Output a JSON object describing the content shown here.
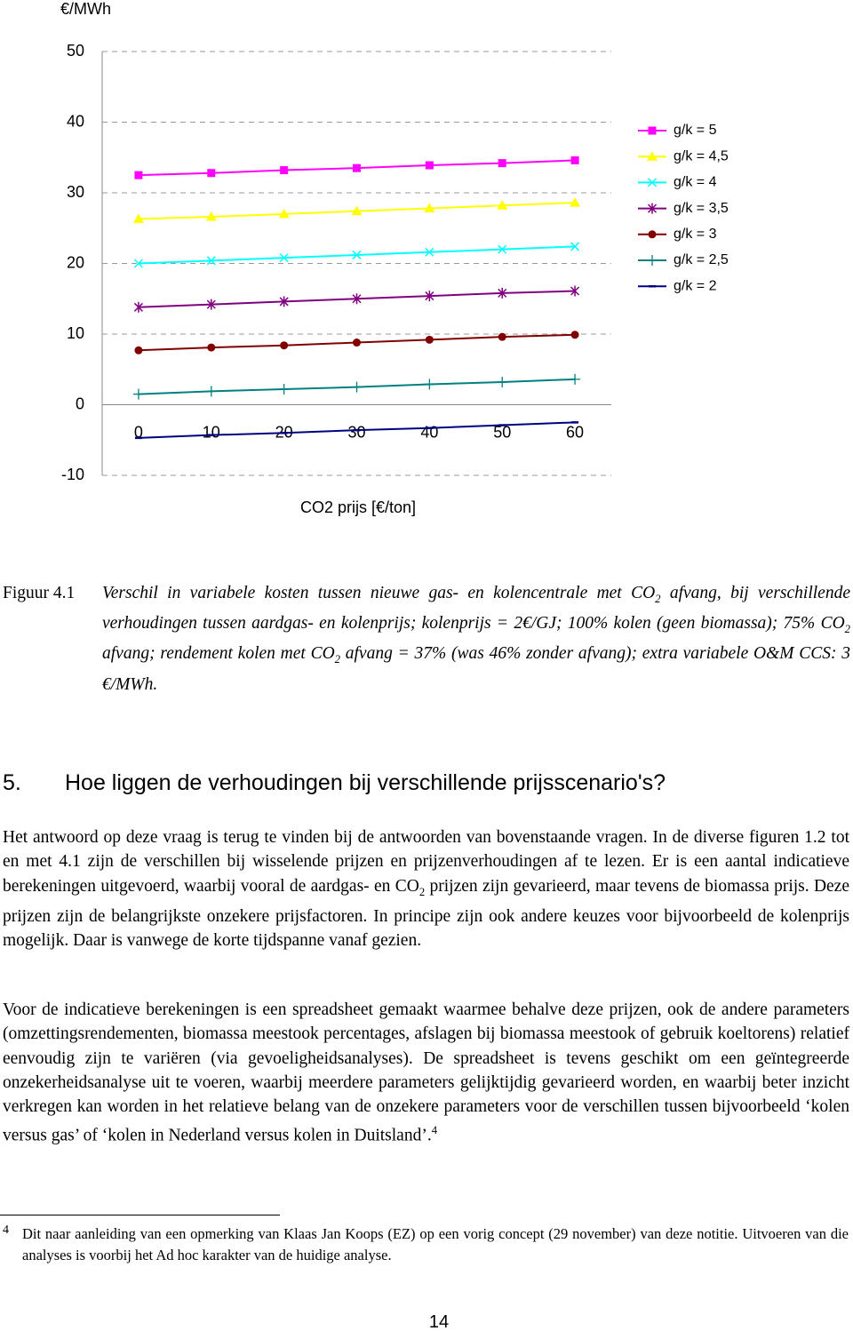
{
  "chart_data": {
    "type": "line",
    "y_label": "€/MWh",
    "x_label": "CO2 prijs [€/ton]",
    "categories": [
      "0",
      "10",
      "20",
      "30",
      "40",
      "50",
      "60"
    ],
    "ylim": [
      -10,
      50
    ],
    "yticks": [
      -10,
      0,
      10,
      20,
      30,
      40,
      50
    ],
    "grid": true,
    "legend": "right",
    "series": [
      {
        "name": "g/k = 5",
        "color": "#ff00ff",
        "marker": "square",
        "values": [
          32.5,
          32.8,
          33.2,
          33.5,
          33.9,
          34.2,
          34.6
        ]
      },
      {
        "name": "g/k = 4,5",
        "color": "#ffff00",
        "marker": "triangle",
        "values": [
          26.3,
          26.6,
          27.0,
          27.4,
          27.8,
          28.2,
          28.6
        ]
      },
      {
        "name": "g/k = 4",
        "color": "#00ffff",
        "marker": "x",
        "values": [
          20.0,
          20.4,
          20.8,
          21.2,
          21.6,
          22.0,
          22.4
        ]
      },
      {
        "name": "g/k = 3,5",
        "color": "#800080",
        "marker": "star",
        "values": [
          13.8,
          14.2,
          14.6,
          15.0,
          15.4,
          15.8,
          16.1
        ]
      },
      {
        "name": "g/k = 3",
        "color": "#800000",
        "marker": "circle",
        "values": [
          7.7,
          8.1,
          8.4,
          8.8,
          9.2,
          9.6,
          9.9
        ]
      },
      {
        "name": "g/k = 2,5",
        "color": "#008080",
        "marker": "plus",
        "values": [
          1.5,
          1.9,
          2.2,
          2.5,
          2.9,
          3.2,
          3.6
        ]
      },
      {
        "name": "g/k = 2",
        "color": "#000080",
        "marker": "dash",
        "values": [
          -4.7,
          -4.3,
          -4.0,
          -3.6,
          -3.3,
          -2.9,
          -2.5
        ]
      }
    ]
  },
  "caption": {
    "label": "Figuur 4.1",
    "runs": [
      "Verschil in variabele kosten tussen nieuwe gas- en kolencentrale met CO",
      "2",
      " afvang, bij verschillende verhoudingen tussen aardgas- en kolenprijs; kolenprijs = 2€/GJ; 100% kolen (geen biomassa); 75% CO",
      "2",
      " afvang; rendement kolen met CO",
      "2",
      " afvang = 37% (was 46% zonder afvang); extra variabele O&M CCS: 3 €/MWh."
    ]
  },
  "section": {
    "number": "5.",
    "title": "Hoe liggen de verhoudingen bij verschillende prijsscenario's?"
  },
  "paragraphs": [
    [
      "Het antwoord op deze vraag is terug te vinden bij de antwoorden van bovenstaande vragen. In de diverse figuren 1.2 tot en met 4.1 zijn de verschillen bij wisselende prijzen en prijzenverhoudingen af te lezen. Er is een aantal indicatieve berekeningen uitgevoerd, waarbij vooral de aardgas- en CO",
      "2",
      " prijzen zijn gevarieerd, maar tevens de biomassa prijs. Deze prijzen zijn de belangrijkste onzekere prijsfactoren. In principe zijn ook andere keuzes voor bijvoorbeeld de kolenprijs mogelijk. Daar is vanwege de korte tijdspanne vanaf gezien."
    ],
    [
      "Voor de indicatieve berekeningen is een spreadsheet gemaakt waarmee behalve deze prijzen, ook de andere parameters (omzettingsrendementen, biomassa meestook percentages, afslagen bij biomassa meestook of gebruik koeltorens) relatief eenvoudig zijn te variëren (via gevoeligheidsanalyses). De spreadsheet is tevens geschikt om een geïntegreerde onzekerheidsanalyse uit te voeren, waarbij meerdere parameters gelijktijdig gevarieerd worden, en waarbij beter inzicht verkregen kan worden in het relatieve belang van de onzekere parameters voor de verschillen tussen bijvoorbeeld ‘kolen versus gas’ of ‘kolen in Nederland versus kolen in Duitsland’.",
      "4"
    ]
  ],
  "footnote": {
    "number": "4",
    "text": "Dit naar aanleiding van een opmerking van Klaas Jan Koops (EZ) op een vorig concept (29 november) van deze notitie. Uitvoeren van die analyses is voorbij het Ad hoc karakter van de huidige analyse."
  },
  "page_number": "14"
}
